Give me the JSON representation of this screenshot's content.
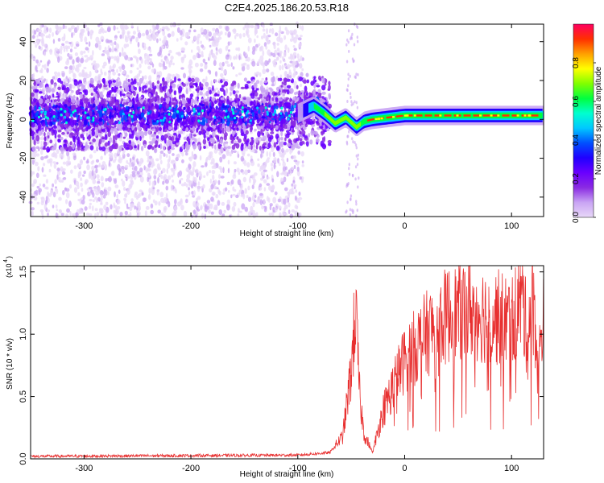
{
  "title": "C2E4.2025.186.20.53.R18",
  "chart_data": [
    {
      "type": "heatmap",
      "xlabel": "Height of straight line (km)",
      "ylabel": "Frequency (Hz)",
      "xlim": [
        -350,
        130
      ],
      "ylim": [
        -50,
        49
      ],
      "x_ticks": [
        -300,
        -200,
        -100,
        0,
        100
      ],
      "y_ticks": [
        -40,
        -20,
        0,
        20,
        40
      ],
      "colorbar": {
        "label": "Normalized spectral amplitude",
        "range": [
          0,
          1
        ],
        "ticks": [
          "0.0",
          "0.2",
          "0.4",
          "0.6",
          "0.8"
        ],
        "tick_values": [
          0,
          0.2,
          0.4,
          0.6,
          0.8
        ],
        "colormap": [
          "#e8d8f8",
          "#c9a4f4",
          "#8a2be2",
          "#6a00ff",
          "#2000ff",
          "#0050ff",
          "#00c8ff",
          "#00ffd0",
          "#00ff40",
          "#80ff00",
          "#ffff00",
          "#ffa000",
          "#ff3000",
          "#ff0060"
        ]
      },
      "signal_track": [
        {
          "x": -350,
          "f": 2
        },
        {
          "x": -100,
          "f": 3
        },
        {
          "x": -85,
          "f": 7
        },
        {
          "x": -75,
          "f": 3
        },
        {
          "x": -65,
          "f": -2
        },
        {
          "x": -55,
          "f": 1
        },
        {
          "x": -45,
          "f": -4
        },
        {
          "x": -38,
          "f": -1
        },
        {
          "x": -30,
          "f": 0
        },
        {
          "x": -15,
          "f": 1
        },
        {
          "x": 0,
          "f": 2
        },
        {
          "x": 50,
          "f": 2
        },
        {
          "x": 130,
          "f": 2
        }
      ]
    },
    {
      "type": "line",
      "xlabel": "Height of straight line (km)",
      "ylabel": "SNR (10 * v/v)",
      "y_multiplier": "(x10",
      "y_multiplier_exp": "4",
      "xlim": [
        -350,
        130
      ],
      "ylim": [
        0,
        1.55
      ],
      "x_ticks": [
        -300,
        -200,
        -100,
        0,
        100
      ],
      "y_ticks": [
        "0.0",
        "0.5",
        "1.0",
        "1.5"
      ],
      "y_tick_values": [
        0,
        0.5,
        1.0,
        1.5
      ],
      "color": "#e83030",
      "envelope": [
        {
          "x": -350,
          "y": 0.02
        },
        {
          "x": -100,
          "y": 0.03
        },
        {
          "x": -70,
          "y": 0.05
        },
        {
          "x": -58,
          "y": 0.18
        },
        {
          "x": -50,
          "y": 0.7
        },
        {
          "x": -46,
          "y": 1.2
        },
        {
          "x": -42,
          "y": 0.5
        },
        {
          "x": -38,
          "y": 0.2
        },
        {
          "x": -30,
          "y": 0.05
        },
        {
          "x": -20,
          "y": 0.4
        },
        {
          "x": -10,
          "y": 0.6
        },
        {
          "x": 0,
          "y": 0.8
        },
        {
          "x": 20,
          "y": 1.0
        },
        {
          "x": 40,
          "y": 1.15
        },
        {
          "x": 60,
          "y": 1.2
        },
        {
          "x": 80,
          "y": 1.15
        },
        {
          "x": 100,
          "y": 1.1
        },
        {
          "x": 110,
          "y": 1.3
        },
        {
          "x": 115,
          "y": 0.95
        },
        {
          "x": 120,
          "y": 1.4
        },
        {
          "x": 125,
          "y": 0.7
        },
        {
          "x": 130,
          "y": 1.2
        }
      ]
    }
  ]
}
